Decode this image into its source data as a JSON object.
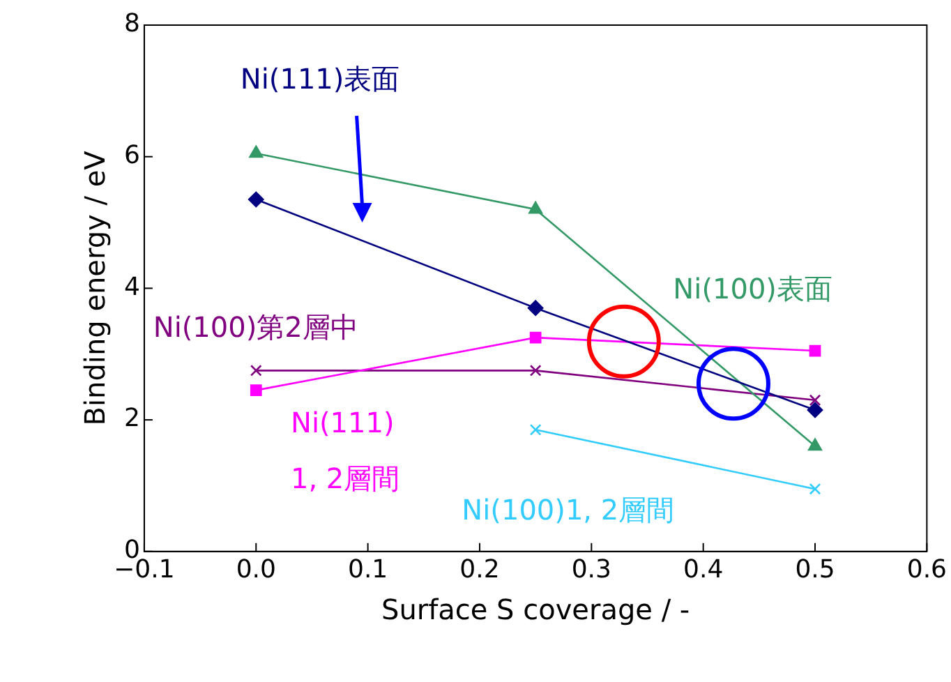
{
  "chart_data": {
    "type": "line",
    "xlabel": "Surface S coverage / -",
    "ylabel": "Binding energy / eV",
    "xlim": [
      -0.1,
      0.6
    ],
    "xticks": [
      {
        "value": -0.1,
        "label": "−0.1"
      },
      {
        "value": 0,
        "label": "0.0"
      },
      0.1,
      0.2,
      0.3,
      0.4,
      0.5,
      0.6
    ],
    "ylim": [
      0,
      8
    ],
    "yticks": [
      0,
      2,
      4,
      6,
      8
    ],
    "grid": false,
    "legend": false,
    "series": [
      {
        "name": "Ni(111)表面",
        "color": "#000080",
        "marker": "diamond",
        "x": [
          0,
          0.25,
          0.5
        ],
        "values": [
          5.35,
          3.7,
          2.15
        ]
      },
      {
        "name": "Ni(100)表面",
        "color": "#339966",
        "marker": "triangle",
        "x": [
          0,
          0.25,
          0.5
        ],
        "values": [
          6.05,
          5.2,
          1.6
        ]
      },
      {
        "name": "Ni(111) 1, 2層間",
        "color": "#ff00ff",
        "marker": "square",
        "x": [
          0,
          0.25,
          0.5
        ],
        "values": [
          2.45,
          3.25,
          3.05
        ]
      },
      {
        "name": "Ni(100)第2層中",
        "color": "#800080",
        "marker": "cross",
        "x": [
          0,
          0.25,
          0.5
        ],
        "values": [
          2.75,
          2.75,
          2.3
        ]
      },
      {
        "name": "Ni(100)1, 2層間",
        "color": "#33ccff",
        "marker": "cross",
        "x": [
          0.25,
          0.5
        ],
        "values": [
          1.85,
          0.95
        ]
      }
    ]
  }
}
